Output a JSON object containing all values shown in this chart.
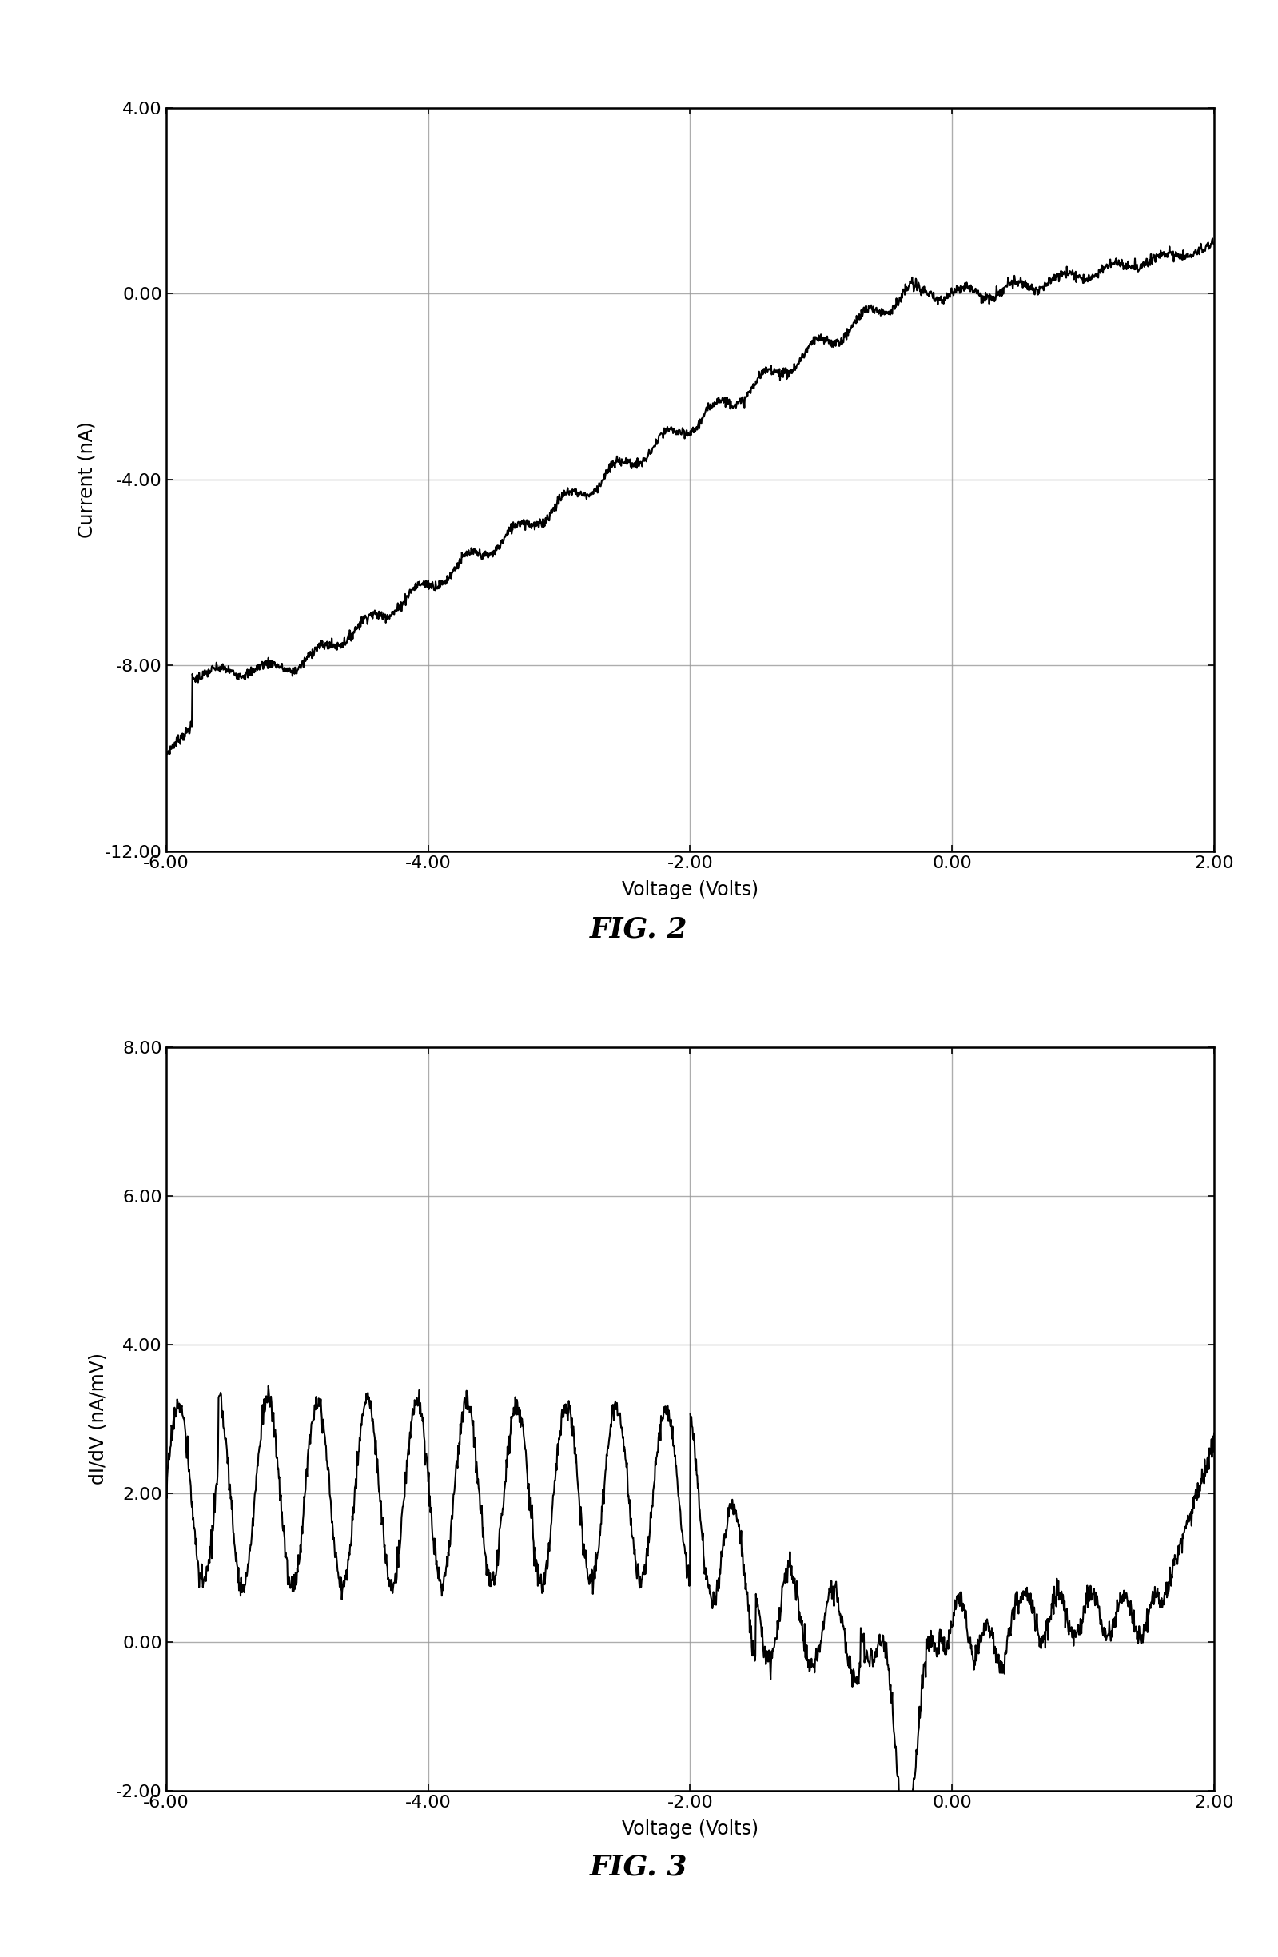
{
  "fig2": {
    "title": "FIG. 2",
    "xlabel": "Voltage (Volts)",
    "ylabel": "Current (nA)",
    "xlim": [
      -6.0,
      2.0
    ],
    "ylim": [
      -12.0,
      4.0
    ],
    "xticks": [
      -6.0,
      -4.0,
      -2.0,
      0.0,
      2.0
    ],
    "yticks": [
      -12.0,
      -8.0,
      -4.0,
      0.0,
      4.0
    ],
    "xtick_labels": [
      "-6.00",
      "-4.00",
      "-2.00",
      "0.00",
      "2.00"
    ],
    "ytick_labels": [
      "-12.00",
      "-8.00",
      "-4.00",
      "0.00",
      "4.00"
    ]
  },
  "fig3": {
    "title": "FIG. 3",
    "xlabel": "Voltage (Volts)",
    "ylabel": "dI/dV (nA/mV)",
    "xlim": [
      -6.0,
      2.0
    ],
    "ylim": [
      -2.0,
      8.0
    ],
    "xticks": [
      -6.0,
      -4.0,
      -2.0,
      0.0,
      2.0
    ],
    "yticks": [
      -2.0,
      0.0,
      2.0,
      4.0,
      6.0,
      8.0
    ],
    "xtick_labels": [
      "-6.00",
      "-4.00",
      "-2.00",
      "0.00",
      "2.00"
    ],
    "ytick_labels": [
      "-2.00",
      "0.00",
      "2.00",
      "4.00",
      "6.00",
      "8.00"
    ]
  },
  "line_color": "#000000",
  "bg_color": "#ffffff",
  "grid_color": "#999999"
}
